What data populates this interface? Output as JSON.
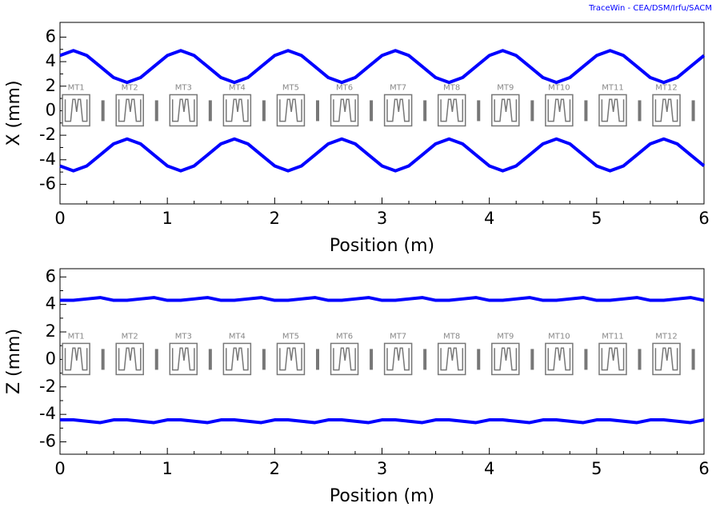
{
  "credit": "TraceWin - CEA/DSM/Irfu/SACM",
  "chart_data": [
    {
      "type": "line",
      "ylabel": "X (mm)",
      "xlabel": "Position (m)",
      "xlim": [
        0,
        6
      ],
      "xticks": [
        0,
        1,
        2,
        3,
        4,
        5,
        6
      ],
      "ylim": [
        -7.6,
        7.2
      ],
      "yticks": [
        -6,
        -4,
        -2,
        0,
        2,
        4,
        6
      ],
      "annotations": [
        "MT1",
        "MT2",
        "MT3",
        "MT4",
        "MT5",
        "MT6",
        "MT7",
        "MT8",
        "MT9",
        "MT10",
        "MT11",
        "MT12"
      ],
      "x": [
        0,
        0.125,
        0.25,
        0.375,
        0.5,
        0.625,
        0.75,
        0.875,
        1,
        1.125,
        1.25,
        1.375,
        1.5,
        1.625,
        1.75,
        1.875,
        2,
        2.125,
        2.25,
        2.375,
        2.5,
        2.625,
        2.75,
        2.875,
        3,
        3.125,
        3.25,
        3.375,
        3.5,
        3.625,
        3.75,
        3.875,
        4,
        4.125,
        4.25,
        4.375,
        4.5,
        4.625,
        4.75,
        4.875,
        5,
        5.125,
        5.25,
        5.375,
        5.5,
        5.625,
        5.75,
        5.875,
        6
      ],
      "series": [
        {
          "color": "#0000ff",
          "values": [
            4.5,
            4.9,
            4.5,
            3.6,
            2.7,
            2.3,
            2.7,
            3.6,
            4.5,
            4.9,
            4.5,
            3.6,
            2.7,
            2.3,
            2.7,
            3.6,
            4.5,
            4.9,
            4.5,
            3.6,
            2.7,
            2.3,
            2.7,
            3.6,
            4.5,
            4.9,
            4.5,
            3.6,
            2.7,
            2.3,
            2.7,
            3.6,
            4.5,
            4.9,
            4.5,
            3.6,
            2.7,
            2.3,
            2.7,
            3.6,
            4.5,
            4.9,
            4.5,
            3.6,
            2.7,
            2.3,
            2.7,
            3.6,
            4.5
          ]
        },
        {
          "color": "#0000ff",
          "values": [
            -4.5,
            -4.9,
            -4.5,
            -3.6,
            -2.7,
            -2.3,
            -2.7,
            -3.6,
            -4.5,
            -4.9,
            -4.5,
            -3.6,
            -2.7,
            -2.3,
            -2.7,
            -3.6,
            -4.5,
            -4.9,
            -4.5,
            -3.6,
            -2.7,
            -2.3,
            -2.7,
            -3.6,
            -4.5,
            -4.9,
            -4.5,
            -3.6,
            -2.7,
            -2.3,
            -2.7,
            -3.6,
            -4.5,
            -4.9,
            -4.5,
            -3.6,
            -2.7,
            -2.3,
            -2.7,
            -3.6,
            -4.5,
            -4.9,
            -4.5,
            -3.6,
            -2.7,
            -2.3,
            -2.7,
            -3.6,
            -4.5
          ]
        }
      ]
    },
    {
      "type": "line",
      "ylabel": "Z (mm)",
      "xlabel": "Position (m)",
      "xlim": [
        0,
        6
      ],
      "xticks": [
        0,
        1,
        2,
        3,
        4,
        5,
        6
      ],
      "ylim": [
        -6.9,
        6.6
      ],
      "yticks": [
        -6,
        -4,
        -2,
        0,
        2,
        4,
        6
      ],
      "annotations": [
        "MT1",
        "MT2",
        "MT3",
        "MT4",
        "MT5",
        "MT6",
        "MT7",
        "MT8",
        "MT9",
        "MT10",
        "MT11",
        "MT12"
      ],
      "x": [
        0,
        0.125,
        0.25,
        0.375,
        0.5,
        0.625,
        0.75,
        0.875,
        1,
        1.125,
        1.25,
        1.375,
        1.5,
        1.625,
        1.75,
        1.875,
        2,
        2.125,
        2.25,
        2.375,
        2.5,
        2.625,
        2.75,
        2.875,
        3,
        3.125,
        3.25,
        3.375,
        3.5,
        3.625,
        3.75,
        3.875,
        4,
        4.125,
        4.25,
        4.375,
        4.5,
        4.625,
        4.75,
        4.875,
        5,
        5.125,
        5.25,
        5.375,
        5.5,
        5.625,
        5.75,
        5.875,
        6
      ],
      "series": [
        {
          "color": "#0000ff",
          "values": [
            4.3,
            4.3,
            4.4,
            4.5,
            4.3,
            4.3,
            4.4,
            4.5,
            4.3,
            4.3,
            4.4,
            4.5,
            4.3,
            4.3,
            4.4,
            4.5,
            4.3,
            4.3,
            4.4,
            4.5,
            4.3,
            4.3,
            4.4,
            4.5,
            4.3,
            4.3,
            4.4,
            4.5,
            4.3,
            4.3,
            4.4,
            4.5,
            4.3,
            4.3,
            4.4,
            4.5,
            4.3,
            4.3,
            4.4,
            4.5,
            4.3,
            4.3,
            4.4,
            4.5,
            4.3,
            4.3,
            4.4,
            4.5,
            4.3
          ]
        },
        {
          "color": "#0000ff",
          "values": [
            -4.4,
            -4.4,
            -4.5,
            -4.6,
            -4.4,
            -4.4,
            -4.5,
            -4.6,
            -4.4,
            -4.4,
            -4.5,
            -4.6,
            -4.4,
            -4.4,
            -4.5,
            -4.6,
            -4.4,
            -4.4,
            -4.5,
            -4.6,
            -4.4,
            -4.4,
            -4.5,
            -4.6,
            -4.4,
            -4.4,
            -4.5,
            -4.6,
            -4.4,
            -4.4,
            -4.5,
            -4.6,
            -4.4,
            -4.4,
            -4.5,
            -4.6,
            -4.4,
            -4.4,
            -4.5,
            -4.6,
            -4.4,
            -4.4,
            -4.5,
            -4.6,
            -4.4,
            -4.4,
            -4.5,
            -4.6,
            -4.4
          ]
        }
      ]
    }
  ]
}
